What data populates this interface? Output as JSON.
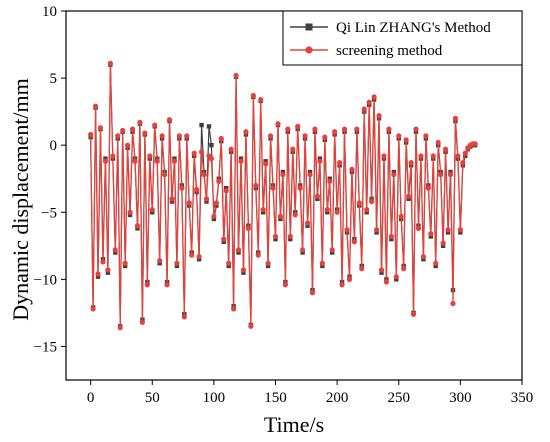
{
  "chart_data": {
    "type": "line",
    "xlabel": "Time/s",
    "ylabel": "Dynamic displacement/mm",
    "xlim": [
      -20,
      350
    ],
    "ylim": [
      -17.5,
      10
    ],
    "xticks": [
      0,
      50,
      100,
      150,
      200,
      250,
      300,
      350
    ],
    "yticks": [
      10,
      5,
      0,
      -5,
      -10,
      -15
    ],
    "x_tick_labels": [
      "0",
      "50",
      "100",
      "150",
      "200",
      "250",
      "300",
      "350"
    ],
    "y_tick_labels": [
      "10",
      "5",
      "0",
      "−5",
      "−10",
      "−15"
    ],
    "grid": false,
    "legend_position": "top-right",
    "series": [
      {
        "name": "Qi Lin ZHANG's Method",
        "color": "#404040",
        "marker": "square",
        "points": [
          [
            0,
            0.6
          ],
          [
            2,
            -12.1
          ],
          [
            4,
            2.8
          ],
          [
            6,
            -9.8
          ],
          [
            8,
            1.2
          ],
          [
            10,
            -8.5
          ],
          [
            12,
            -1.0
          ],
          [
            14,
            -9.5
          ],
          [
            16,
            6.0
          ],
          [
            18,
            -1.0
          ],
          [
            20,
            -8.0
          ],
          [
            22,
            0.5
          ],
          [
            24,
            -13.5
          ],
          [
            26,
            1.0
          ],
          [
            28,
            -9.0
          ],
          [
            30,
            -0.2
          ],
          [
            32,
            -5.2
          ],
          [
            34,
            1.0
          ],
          [
            36,
            -1.0
          ],
          [
            38,
            -6.2
          ],
          [
            40,
            1.6
          ],
          [
            42,
            -13.0
          ],
          [
            44,
            0.8
          ],
          [
            46,
            -10.2
          ],
          [
            48,
            -1.0
          ],
          [
            50,
            -5.0
          ],
          [
            52,
            1.4
          ],
          [
            54,
            -1.0
          ],
          [
            56,
            -8.8
          ],
          [
            58,
            0.5
          ],
          [
            60,
            -2.0
          ],
          [
            62,
            -10.2
          ],
          [
            64,
            1.8
          ],
          [
            66,
            -4.2
          ],
          [
            68,
            -1.0
          ],
          [
            70,
            -9.0
          ],
          [
            72,
            0.5
          ],
          [
            74,
            -3.0
          ],
          [
            76,
            -12.6
          ],
          [
            78,
            0.5
          ],
          [
            80,
            -4.5
          ],
          [
            82,
            -8.0
          ],
          [
            84,
            -0.8
          ],
          [
            86,
            -3.5
          ],
          [
            88,
            -8.5
          ],
          [
            90,
            1.5
          ],
          [
            92,
            -2.0
          ],
          [
            94,
            -4.2
          ],
          [
            96,
            1.4
          ],
          [
            98,
            0.0
          ],
          [
            100,
            -5.5
          ],
          [
            102,
            -4.5
          ],
          [
            104,
            -2.5
          ],
          [
            106,
            0.3
          ],
          [
            108,
            -7.2
          ],
          [
            110,
            -3.2
          ],
          [
            112,
            -9.0
          ],
          [
            114,
            -0.5
          ],
          [
            116,
            -12.0
          ],
          [
            118,
            5.1
          ],
          [
            120,
            -8.0
          ],
          [
            122,
            -1.0
          ],
          [
            124,
            -9.5
          ],
          [
            126,
            0.8
          ],
          [
            128,
            -6.0
          ],
          [
            130,
            -13.4
          ],
          [
            132,
            3.6
          ],
          [
            134,
            -3.2
          ],
          [
            136,
            -8.0
          ],
          [
            138,
            3.3
          ],
          [
            140,
            -5.0
          ],
          [
            142,
            -1.2
          ],
          [
            144,
            -9.0
          ],
          [
            146,
            0.5
          ],
          [
            148,
            -3.0
          ],
          [
            150,
            -7.0
          ],
          [
            152,
            1.5
          ],
          [
            154,
            -5.5
          ],
          [
            156,
            -2.0
          ],
          [
            158,
            -10.2
          ],
          [
            160,
            1.0
          ],
          [
            162,
            -7.0
          ],
          [
            164,
            -0.5
          ],
          [
            166,
            -5.0
          ],
          [
            168,
            1.2
          ],
          [
            170,
            -3.0
          ],
          [
            172,
            -8.0
          ],
          [
            174,
            0.5
          ],
          [
            176,
            -6.0
          ],
          [
            178,
            -2.0
          ],
          [
            180,
            -10.8
          ],
          [
            182,
            1.0
          ],
          [
            184,
            -4.0
          ],
          [
            186,
            -1.0
          ],
          [
            188,
            -9.0
          ],
          [
            190,
            0.4
          ],
          [
            192,
            -5.0
          ],
          [
            194,
            -2.5
          ],
          [
            196,
            -8.0
          ],
          [
            198,
            0.8
          ],
          [
            200,
            -4.8
          ],
          [
            202,
            -1.5
          ],
          [
            204,
            -10.2
          ],
          [
            206,
            1.0
          ],
          [
            208,
            -6.5
          ],
          [
            210,
            -9.8
          ],
          [
            212,
            -2.0
          ],
          [
            214,
            -7.0
          ],
          [
            216,
            1.0
          ],
          [
            218,
            -4.5
          ],
          [
            220,
            -9.0
          ],
          [
            222,
            2.5
          ],
          [
            224,
            -5.0
          ],
          [
            226,
            3.0
          ],
          [
            228,
            -4.0
          ],
          [
            230,
            3.4
          ],
          [
            232,
            -6.5
          ],
          [
            234,
            2.0
          ],
          [
            236,
            -9.5
          ],
          [
            238,
            -1.0
          ],
          [
            240,
            -10.0
          ],
          [
            242,
            1.0
          ],
          [
            244,
            -7.0
          ],
          [
            246,
            -2.0
          ],
          [
            248,
            -10.0
          ],
          [
            250,
            0.5
          ],
          [
            252,
            -5.5
          ],
          [
            254,
            -9.0
          ],
          [
            256,
            0.2
          ],
          [
            258,
            -4.0
          ],
          [
            260,
            -1.5
          ],
          [
            262,
            -12.5
          ],
          [
            264,
            1.0
          ],
          [
            266,
            -6.0
          ],
          [
            268,
            -1.0
          ],
          [
            270,
            -8.5
          ],
          [
            272,
            0.5
          ],
          [
            274,
            -3.0
          ],
          [
            276,
            -6.8
          ],
          [
            278,
            -1.0
          ],
          [
            280,
            -9.0
          ],
          [
            282,
            0.0
          ],
          [
            284,
            -2.0
          ],
          [
            286,
            -7.5
          ],
          [
            288,
            -0.5
          ],
          [
            290,
            -6.5
          ],
          [
            292,
            -2.0
          ],
          [
            294,
            -10.8
          ],
          [
            296,
            1.8
          ],
          [
            298,
            -1.0
          ],
          [
            300,
            -6.5
          ],
          [
            302,
            -1.5
          ],
          [
            304,
            -0.8
          ],
          [
            306,
            -0.3
          ],
          [
            308,
            -0.1
          ],
          [
            310,
            0.0
          ],
          [
            312,
            0.0
          ]
        ]
      },
      {
        "name": "screening method",
        "color": "#e8403a",
        "marker": "circle",
        "points": [
          [
            0,
            0.8
          ],
          [
            2,
            -12.2
          ],
          [
            4,
            2.9
          ],
          [
            6,
            -9.6
          ],
          [
            8,
            1.3
          ],
          [
            10,
            -8.7
          ],
          [
            12,
            -1.2
          ],
          [
            14,
            -9.3
          ],
          [
            16,
            6.1
          ],
          [
            18,
            -0.8
          ],
          [
            20,
            -7.8
          ],
          [
            22,
            0.7
          ],
          [
            24,
            -13.6
          ],
          [
            26,
            1.1
          ],
          [
            28,
            -8.8
          ],
          [
            30,
            0.0
          ],
          [
            32,
            -5.0
          ],
          [
            34,
            1.2
          ],
          [
            36,
            -1.2
          ],
          [
            38,
            -6.0
          ],
          [
            40,
            1.7
          ],
          [
            42,
            -13.2
          ],
          [
            44,
            0.9
          ],
          [
            46,
            -10.4
          ],
          [
            48,
            -0.8
          ],
          [
            50,
            -4.8
          ],
          [
            52,
            1.5
          ],
          [
            54,
            -1.2
          ],
          [
            56,
            -8.6
          ],
          [
            58,
            0.7
          ],
          [
            60,
            -2.2
          ],
          [
            62,
            -10.4
          ],
          [
            64,
            1.9
          ],
          [
            66,
            -4.0
          ],
          [
            68,
            -1.2
          ],
          [
            70,
            -8.8
          ],
          [
            72,
            0.7
          ],
          [
            74,
            -3.2
          ],
          [
            76,
            -12.8
          ],
          [
            78,
            0.7
          ],
          [
            80,
            -4.3
          ],
          [
            82,
            -8.2
          ],
          [
            84,
            -0.6
          ],
          [
            86,
            -3.3
          ],
          [
            88,
            -8.3
          ],
          [
            90,
            -0.5
          ],
          [
            92,
            -2.2
          ],
          [
            94,
            -4.0
          ],
          [
            96,
            -0.8
          ],
          [
            98,
            -1.0
          ],
          [
            100,
            -5.3
          ],
          [
            102,
            -4.3
          ],
          [
            104,
            -2.7
          ],
          [
            106,
            0.5
          ],
          [
            108,
            -7.0
          ],
          [
            110,
            -3.4
          ],
          [
            112,
            -8.8
          ],
          [
            114,
            -0.3
          ],
          [
            116,
            -12.2
          ],
          [
            118,
            5.2
          ],
          [
            120,
            -7.8
          ],
          [
            122,
            -1.2
          ],
          [
            124,
            -9.3
          ],
          [
            126,
            1.0
          ],
          [
            128,
            -6.2
          ],
          [
            130,
            -13.5
          ],
          [
            132,
            3.7
          ],
          [
            134,
            -3.0
          ],
          [
            136,
            -8.2
          ],
          [
            138,
            3.4
          ],
          [
            140,
            -4.8
          ],
          [
            142,
            -1.4
          ],
          [
            144,
            -8.8
          ],
          [
            146,
            0.7
          ],
          [
            148,
            -3.2
          ],
          [
            150,
            -6.8
          ],
          [
            152,
            1.6
          ],
          [
            154,
            -5.3
          ],
          [
            156,
            -2.2
          ],
          [
            158,
            -10.4
          ],
          [
            160,
            1.2
          ],
          [
            162,
            -6.8
          ],
          [
            164,
            -0.3
          ],
          [
            166,
            -5.2
          ],
          [
            168,
            1.4
          ],
          [
            170,
            -3.2
          ],
          [
            172,
            -7.8
          ],
          [
            174,
            0.7
          ],
          [
            176,
            -5.8
          ],
          [
            178,
            -2.2
          ],
          [
            180,
            -11.0
          ],
          [
            182,
            1.2
          ],
          [
            184,
            -3.8
          ],
          [
            186,
            -1.2
          ],
          [
            188,
            -8.8
          ],
          [
            190,
            0.6
          ],
          [
            192,
            -4.8
          ],
          [
            194,
            -2.7
          ],
          [
            196,
            -7.8
          ],
          [
            198,
            1.0
          ],
          [
            200,
            -5.0
          ],
          [
            202,
            -1.3
          ],
          [
            204,
            -10.4
          ],
          [
            206,
            1.2
          ],
          [
            208,
            -6.3
          ],
          [
            210,
            -10.0
          ],
          [
            212,
            -1.8
          ],
          [
            214,
            -7.2
          ],
          [
            216,
            1.2
          ],
          [
            218,
            -4.3
          ],
          [
            220,
            -9.2
          ],
          [
            222,
            2.7
          ],
          [
            224,
            -4.8
          ],
          [
            226,
            3.2
          ],
          [
            228,
            -4.2
          ],
          [
            230,
            3.6
          ],
          [
            232,
            -6.3
          ],
          [
            234,
            2.2
          ],
          [
            236,
            -9.3
          ],
          [
            238,
            -0.8
          ],
          [
            240,
            -10.2
          ],
          [
            242,
            1.2
          ],
          [
            244,
            -6.8
          ],
          [
            246,
            -2.2
          ],
          [
            248,
            -9.8
          ],
          [
            250,
            0.7
          ],
          [
            252,
            -5.3
          ],
          [
            254,
            -9.2
          ],
          [
            256,
            0.4
          ],
          [
            258,
            -3.8
          ],
          [
            260,
            -1.3
          ],
          [
            262,
            -12.6
          ],
          [
            264,
            1.2
          ],
          [
            266,
            -6.2
          ],
          [
            268,
            -0.8
          ],
          [
            270,
            -8.3
          ],
          [
            272,
            0.7
          ],
          [
            274,
            -3.2
          ],
          [
            276,
            -6.6
          ],
          [
            278,
            -0.8
          ],
          [
            280,
            -8.8
          ],
          [
            282,
            0.2
          ],
          [
            284,
            -2.2
          ],
          [
            286,
            -7.3
          ],
          [
            288,
            -0.3
          ],
          [
            290,
            -6.3
          ],
          [
            292,
            -2.2
          ],
          [
            294,
            -11.8
          ],
          [
            296,
            2.0
          ],
          [
            298,
            -0.8
          ],
          [
            300,
            -6.3
          ],
          [
            302,
            -1.3
          ],
          [
            304,
            -0.6
          ],
          [
            306,
            -0.2
          ],
          [
            308,
            0.0
          ],
          [
            310,
            0.1
          ],
          [
            312,
            0.1
          ]
        ]
      }
    ]
  }
}
